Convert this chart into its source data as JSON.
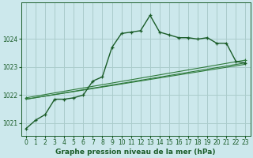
{
  "title": "Graphe pression niveau de la mer (hPa)",
  "bg_color": "#cce8ec",
  "grid_color": "#aacccc",
  "line_dark": "#1a5c28",
  "line_mid": "#2d7a3a",
  "xlim": [
    -0.5,
    23.5
  ],
  "ylim": [
    1020.55,
    1025.3
  ],
  "yticks": [
    1021,
    1022,
    1023,
    1024
  ],
  "xticks": [
    0,
    1,
    2,
    3,
    4,
    5,
    6,
    7,
    8,
    9,
    10,
    11,
    12,
    13,
    14,
    15,
    16,
    17,
    18,
    19,
    20,
    21,
    22,
    23
  ],
  "series1_x": [
    0,
    1,
    2,
    3,
    4,
    5,
    6,
    7,
    8,
    9,
    10,
    11,
    12,
    13,
    14,
    15,
    16,
    17,
    18,
    19,
    20,
    21,
    22,
    23
  ],
  "series1_y": [
    1020.8,
    1021.1,
    1021.3,
    1021.85,
    1021.85,
    1021.9,
    1022.0,
    1022.5,
    1022.65,
    1023.7,
    1024.2,
    1024.25,
    1024.3,
    1024.85,
    1024.25,
    1024.15,
    1024.05,
    1024.05,
    1024.0,
    1024.05,
    1023.85,
    1023.85,
    1023.2,
    1023.15
  ],
  "series2_x": [
    0,
    23
  ],
  "series2_y": [
    1021.85,
    1023.1
  ],
  "series3_x": [
    0,
    23
  ],
  "series3_y": [
    1021.85,
    1023.15
  ],
  "series4_x": [
    0,
    23
  ],
  "series4_y": [
    1021.9,
    1023.25
  ],
  "title_fontsize": 6.5,
  "tick_fontsize": 5.5
}
